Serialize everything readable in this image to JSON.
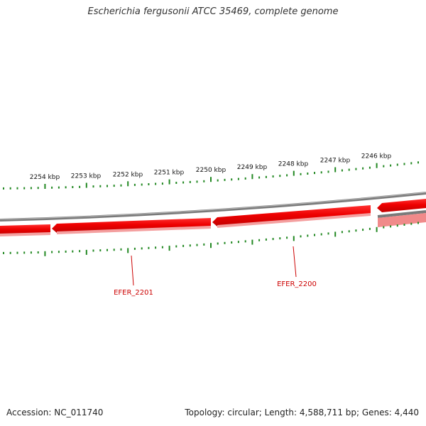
{
  "title": "Escherichia fergusonii ATCC 35469, complete genome",
  "footer": {
    "accession": "Accession: NC_011740",
    "summary": "Topology: circular; Length: 4,588,711 bp; Genes: 4,440"
  },
  "colors": {
    "gene": "#ee0000",
    "gene_highlight": "#ff4040",
    "gene_light": "#f08080",
    "backbone": "#808080",
    "tick": "#228822",
    "gene_label": "#cc0000"
  },
  "kbp_labels": [
    "2254 kbp",
    "2253 kbp",
    "2252 kbp",
    "2251 kbp",
    "2250 kbp",
    "2249 kbp",
    "2248 kbp",
    "2247 kbp",
    "2246 kbp"
  ],
  "gene_labels": [
    "EFER_2201",
    "EFER_2200"
  ]
}
